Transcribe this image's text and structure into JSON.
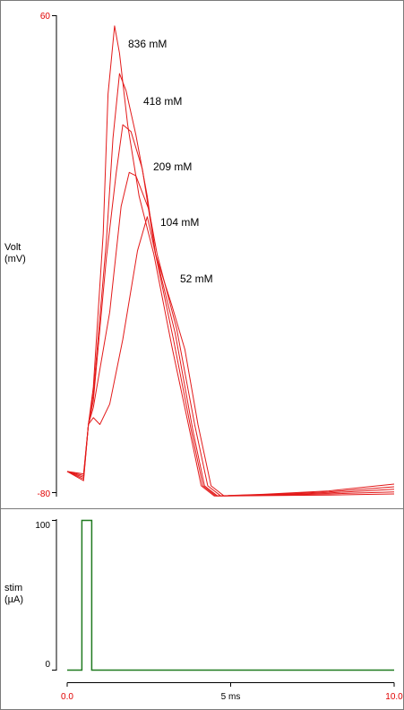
{
  "chart_data": [
    {
      "type": "line",
      "ylabel": [
        "Volt",
        "(mV)"
      ],
      "ylim": [
        -80,
        60
      ],
      "xlim": [
        0,
        10
      ],
      "ytick_labels": [
        "60",
        "-80"
      ],
      "line_color": "#e31a1a",
      "annotations": [
        "836 mM",
        "418 mM",
        "209 mM",
        "104 mM",
        "52 mM"
      ],
      "series": [
        {
          "values": [
            [
              0,
              -73.8
            ],
            [
              0.5,
              -76.5
            ],
            [
              0.65,
              -60
            ],
            [
              0.8,
              -49
            ],
            [
              1.1,
              -4
            ],
            [
              1.25,
              37
            ],
            [
              1.45,
              57
            ],
            [
              1.6,
              49
            ],
            [
              1.85,
              28
            ],
            [
              2.2,
              7
            ],
            [
              2.65,
              -10
            ],
            [
              3.2,
              -37
            ],
            [
              3.75,
              -62
            ],
            [
              4.1,
              -78
            ],
            [
              4.5,
              -81
            ],
            [
              6,
              -80.5
            ],
            [
              8,
              -79.5
            ],
            [
              10,
              -77.5
            ]
          ]
        },
        {
          "values": [
            [
              0,
              -73.8
            ],
            [
              0.5,
              -76
            ],
            [
              0.65,
              -60
            ],
            [
              0.8,
              -51
            ],
            [
              1.2,
              -6
            ],
            [
              1.4,
              24
            ],
            [
              1.6,
              43
            ],
            [
              1.8,
              38
            ],
            [
              2.1,
              25
            ],
            [
              2.45,
              7
            ],
            [
              2.7,
              -10
            ],
            [
              3.25,
              -35
            ],
            [
              3.8,
              -62
            ],
            [
              4.15,
              -78
            ],
            [
              4.55,
              -81
            ],
            [
              6,
              -80.6
            ],
            [
              8,
              -79.8
            ],
            [
              10,
              -78.3
            ]
          ]
        },
        {
          "values": [
            [
              0,
              -73.8
            ],
            [
              0.5,
              -75.5
            ],
            [
              0.65,
              -60
            ],
            [
              0.8,
              -53
            ],
            [
              1.2,
              -11
            ],
            [
              1.5,
              14
            ],
            [
              1.7,
              28
            ],
            [
              1.95,
              26
            ],
            [
              2.3,
              15
            ],
            [
              2.7,
              -10
            ],
            [
              3.3,
              -33
            ],
            [
              3.85,
              -62
            ],
            [
              4.2,
              -78
            ],
            [
              4.6,
              -81
            ],
            [
              6,
              -80.7
            ],
            [
              8,
              -80.1
            ],
            [
              10,
              -79
            ]
          ]
        },
        {
          "values": [
            [
              0,
              -73.8
            ],
            [
              0.5,
              -75
            ],
            [
              0.65,
              -60
            ],
            [
              0.8,
              -55
            ],
            [
              1.3,
              -27
            ],
            [
              1.65,
              4
            ],
            [
              1.9,
              14
            ],
            [
              2.1,
              13
            ],
            [
              2.5,
              3
            ],
            [
              2.75,
              -10
            ],
            [
              3.35,
              -32
            ],
            [
              3.9,
              -60
            ],
            [
              4.3,
              -78
            ],
            [
              4.7,
              -81
            ],
            [
              6,
              -80.8
            ],
            [
              8,
              -80.4
            ],
            [
              10,
              -79.8
            ]
          ]
        },
        {
          "values": [
            [
              0,
              -73.8
            ],
            [
              0.5,
              -74.5
            ],
            [
              0.65,
              -60
            ],
            [
              0.8,
              -58
            ],
            [
              1,
              -60
            ],
            [
              1.3,
              -54
            ],
            [
              1.7,
              -35
            ],
            [
              2.15,
              -9
            ],
            [
              2.45,
              1
            ],
            [
              2.7,
              -10
            ],
            [
              3.2,
              -25
            ],
            [
              3.6,
              -38
            ],
            [
              4,
              -60
            ],
            [
              4.4,
              -78
            ],
            [
              4.8,
              -81
            ],
            [
              6,
              -80.9
            ],
            [
              8,
              -80.7
            ],
            [
              10,
              -80.4
            ]
          ]
        }
      ]
    },
    {
      "type": "line",
      "ylabel": [
        "stim",
        "(µA)"
      ],
      "ylim": [
        0,
        100
      ],
      "xlim": [
        0,
        10
      ],
      "ytick_labels": [
        "100",
        "0"
      ],
      "line_color": "#1f7a1f",
      "series": [
        {
          "values": [
            [
              0,
              0
            ],
            [
              0.45,
              0
            ],
            [
              0.45,
              100
            ],
            [
              0.75,
              100
            ],
            [
              0.75,
              0
            ],
            [
              10,
              0
            ]
          ]
        }
      ]
    }
  ],
  "x_axis": {
    "tick_labels": [
      {
        "value": 0,
        "label": "0.0"
      },
      {
        "value": 5,
        "label": "5 ms"
      },
      {
        "value": 10,
        "label": "10.0"
      }
    ]
  }
}
